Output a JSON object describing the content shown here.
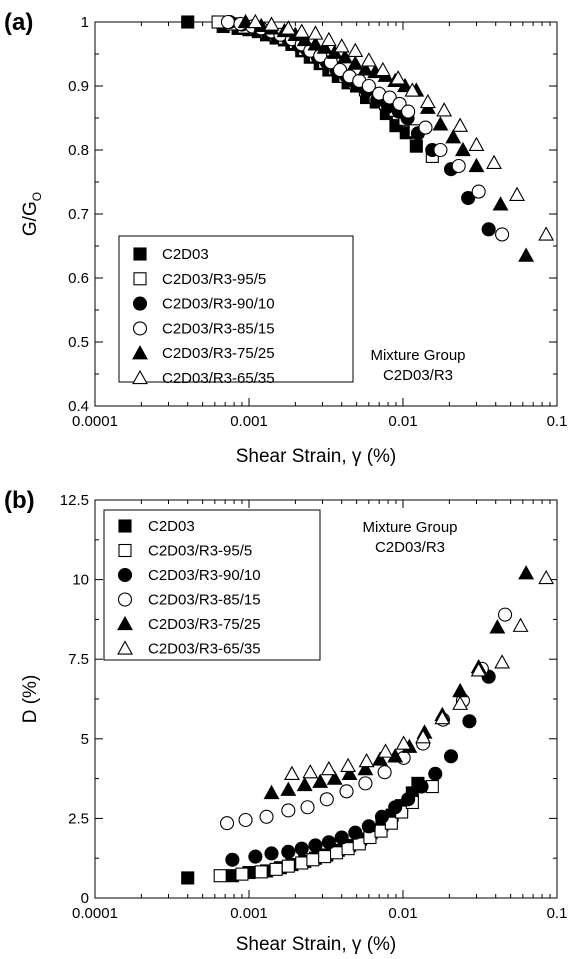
{
  "chart_data": [
    {
      "type": "scatter",
      "panel_label": "(a)",
      "xlabel": "Shear Strain, γ (%)",
      "ylabel_main": "G/G",
      "ylabel_sub": "O",
      "x_scale": "log",
      "xlim": [
        0.0001,
        0.1
      ],
      "ylim": [
        0.4,
        1.0
      ],
      "x_ticks": [
        "0.0001",
        "0.001",
        "0.01",
        "0.1"
      ],
      "y_ticks": [
        "0.4",
        "0.5",
        "0.6",
        "0.7",
        "0.8",
        "0.9",
        "1"
      ],
      "legend_placement": "bottom-left",
      "annotation": [
        "Mixture Group",
        "C2D03/R3"
      ],
      "series": [
        {
          "name": "C2D03",
          "marker": "square",
          "filled": true,
          "x": [
            0.0004,
            0.00068,
            0.00085,
            0.001,
            0.00115,
            0.0013,
            0.0015,
            0.0017,
            0.0019,
            0.0022,
            0.0025,
            0.0029,
            0.0033,
            0.0038,
            0.0044,
            0.005,
            0.0058,
            0.0067,
            0.0078,
            0.009,
            0.0105,
            0.0122
          ],
          "y": [
            1.0,
            0.993,
            0.99,
            0.988,
            0.985,
            0.98,
            0.975,
            0.972,
            0.965,
            0.955,
            0.945,
            0.935,
            0.925,
            0.915,
            0.905,
            0.9,
            0.882,
            0.875,
            0.857,
            0.838,
            0.827,
            0.806
          ]
        },
        {
          "name": "C2D03/R3-95/5",
          "marker": "square",
          "filled": false,
          "x": [
            0.00063,
            0.00078,
            0.00093,
            0.0011,
            0.0013,
            0.0015,
            0.0017,
            0.002,
            0.0023,
            0.0027,
            0.0031,
            0.0036,
            0.0042,
            0.0049,
            0.0057,
            0.0066,
            0.0077,
            0.0089,
            0.0103,
            0.012,
            0.0155
          ],
          "y": [
            1.0,
            0.997,
            0.992,
            0.99,
            0.985,
            0.98,
            0.975,
            0.968,
            0.957,
            0.947,
            0.937,
            0.927,
            0.915,
            0.905,
            0.894,
            0.883,
            0.873,
            0.862,
            0.848,
            0.83,
            0.79
          ]
        },
        {
          "name": "C2D03/R3-90/10",
          "marker": "circle",
          "filled": true,
          "x": [
            0.00075,
            0.0009,
            0.0011,
            0.0013,
            0.0015,
            0.0018,
            0.0021,
            0.0024,
            0.0028,
            0.0032,
            0.0037,
            0.0043,
            0.005,
            0.0058,
            0.0068,
            0.008,
            0.0094,
            0.0107,
            0.0125,
            0.0155,
            0.0205,
            0.0265,
            0.036
          ],
          "y": [
            1.0,
            0.996,
            0.99,
            0.985,
            0.98,
            0.973,
            0.963,
            0.955,
            0.945,
            0.937,
            0.925,
            0.915,
            0.903,
            0.893,
            0.878,
            0.868,
            0.86,
            0.85,
            0.826,
            0.8,
            0.77,
            0.725,
            0.676
          ]
        },
        {
          "name": "C2D03/R3-85/15",
          "marker": "circle",
          "filled": false,
          "x": [
            0.00073,
            0.00088,
            0.00105,
            0.0012,
            0.0014,
            0.0016,
            0.0019,
            0.0022,
            0.0025,
            0.0029,
            0.0034,
            0.0039,
            0.0045,
            0.0052,
            0.006,
            0.007,
            0.0082,
            0.0095,
            0.0108,
            0.014,
            0.0175,
            0.023,
            0.031,
            0.044
          ],
          "y": [
            1.0,
            0.997,
            0.993,
            0.99,
            0.985,
            0.98,
            0.973,
            0.965,
            0.955,
            0.947,
            0.937,
            0.925,
            0.915,
            0.908,
            0.9,
            0.888,
            0.882,
            0.872,
            0.86,
            0.835,
            0.8,
            0.775,
            0.735,
            0.668
          ]
        },
        {
          "name": "C2D03/R3-75/25",
          "marker": "triangle",
          "filled": true,
          "x": [
            0.00095,
            0.0012,
            0.0014,
            0.0017,
            0.002,
            0.0023,
            0.0027,
            0.0031,
            0.0036,
            0.0042,
            0.0049,
            0.0057,
            0.0066,
            0.0077,
            0.0089,
            0.0103,
            0.0122,
            0.0145,
            0.0175,
            0.0212,
            0.0245,
            0.03,
            0.043,
            0.063
          ],
          "y": [
            1.0,
            0.994,
            0.99,
            0.986,
            0.98,
            0.972,
            0.965,
            0.96,
            0.952,
            0.945,
            0.935,
            0.926,
            0.922,
            0.916,
            0.908,
            0.9,
            0.893,
            0.866,
            0.84,
            0.82,
            0.8,
            0.775,
            0.715,
            0.635
          ]
        },
        {
          "name": "C2D03/R3-65/35",
          "marker": "triangle",
          "filled": false,
          "x": [
            0.0011,
            0.0014,
            0.0018,
            0.0022,
            0.0027,
            0.0033,
            0.004,
            0.0049,
            0.006,
            0.0074,
            0.0093,
            0.0115,
            0.0145,
            0.0185,
            0.0235,
            0.03,
            0.039,
            0.055,
            0.085
          ],
          "y": [
            1.0,
            0.996,
            0.99,
            0.985,
            0.982,
            0.972,
            0.962,
            0.955,
            0.94,
            0.925,
            0.912,
            0.893,
            0.875,
            0.862,
            0.838,
            0.808,
            0.78,
            0.73,
            0.668
          ]
        }
      ]
    },
    {
      "type": "scatter",
      "panel_label": "(b)",
      "xlabel": "Shear Strain, γ (%)",
      "ylabel_main": "D (%)",
      "x_scale": "log",
      "xlim": [
        0.0001,
        0.1
      ],
      "ylim": [
        0,
        12.5
      ],
      "x_ticks": [
        "0.0001",
        "0.001",
        "0.01",
        "0.1"
      ],
      "y_ticks": [
        "0",
        "2.5",
        "5",
        "7.5",
        "10",
        "12.5"
      ],
      "legend_placement": "top-left",
      "annotation": [
        "Mixture Group",
        "C2D03/R3"
      ],
      "series": [
        {
          "name": "C2D03",
          "marker": "square",
          "filled": true,
          "x": [
            0.0004,
            0.00078,
            0.001,
            0.0013,
            0.0016,
            0.0019,
            0.0023,
            0.0027,
            0.0032,
            0.0038,
            0.0045,
            0.0053,
            0.0062,
            0.0073,
            0.0085,
            0.0098,
            0.0115,
            0.0125
          ],
          "y": [
            0.63,
            0.7,
            0.8,
            0.85,
            0.95,
            1.05,
            1.15,
            1.25,
            1.35,
            1.5,
            1.65,
            1.85,
            2.05,
            2.3,
            2.6,
            2.9,
            3.3,
            3.6
          ]
        },
        {
          "name": "C2D03/R3-95/5",
          "marker": "square",
          "filled": false,
          "x": [
            0.00065,
            0.0009,
            0.0012,
            0.0015,
            0.0018,
            0.0022,
            0.0026,
            0.0031,
            0.0037,
            0.0044,
            0.0052,
            0.0061,
            0.0072,
            0.0084,
            0.0098,
            0.0115,
            0.0155
          ],
          "y": [
            0.7,
            0.75,
            0.82,
            0.9,
            1.0,
            1.1,
            1.2,
            1.3,
            1.42,
            1.55,
            1.7,
            1.9,
            2.1,
            2.35,
            2.7,
            3.0,
            3.5
          ]
        },
        {
          "name": "C2D03/R3-90/10",
          "marker": "circle",
          "filled": true,
          "x": [
            0.00078,
            0.0011,
            0.0014,
            0.0018,
            0.0022,
            0.0027,
            0.0033,
            0.004,
            0.0049,
            0.006,
            0.0073,
            0.0089,
            0.0108,
            0.0132,
            0.0162,
            0.0205,
            0.027,
            0.036
          ],
          "y": [
            1.2,
            1.3,
            1.4,
            1.45,
            1.55,
            1.65,
            1.75,
            1.9,
            2.05,
            2.25,
            2.55,
            2.85,
            3.1,
            3.5,
            3.9,
            4.45,
            5.55,
            6.95
          ]
        },
        {
          "name": "C2D03/R3-85/15",
          "marker": "circle",
          "filled": false,
          "x": [
            0.00072,
            0.00095,
            0.0013,
            0.0018,
            0.0024,
            0.0032,
            0.0043,
            0.0057,
            0.0076,
            0.0101,
            0.0135,
            0.0182,
            0.0245,
            0.0325,
            0.046
          ],
          "y": [
            2.35,
            2.45,
            2.55,
            2.75,
            2.85,
            3.1,
            3.35,
            3.6,
            3.95,
            4.4,
            4.85,
            5.6,
            6.2,
            7.2,
            8.9
          ]
        },
        {
          "name": "C2D03/R3-75/25",
          "marker": "triangle",
          "filled": true,
          "x": [
            0.0014,
            0.0018,
            0.0023,
            0.0029,
            0.0036,
            0.0045,
            0.0057,
            0.0071,
            0.0089,
            0.011,
            0.0138,
            0.018,
            0.0235,
            0.031,
            0.041,
            0.063
          ],
          "y": [
            3.3,
            3.4,
            3.55,
            3.65,
            3.75,
            3.9,
            4.05,
            4.35,
            4.45,
            4.75,
            5.2,
            5.75,
            6.5,
            7.25,
            8.5,
            10.2
          ]
        },
        {
          "name": "C2D03/R3-65/35",
          "marker": "triangle",
          "filled": false,
          "x": [
            0.0019,
            0.0025,
            0.0033,
            0.0044,
            0.0058,
            0.0077,
            0.0101,
            0.0135,
            0.018,
            0.0235,
            0.031,
            0.044,
            0.058,
            0.085
          ],
          "y": [
            3.9,
            3.95,
            4.05,
            4.15,
            4.3,
            4.6,
            4.85,
            5.05,
            5.65,
            6.1,
            7.15,
            7.4,
            8.55,
            10.05
          ]
        }
      ]
    }
  ]
}
